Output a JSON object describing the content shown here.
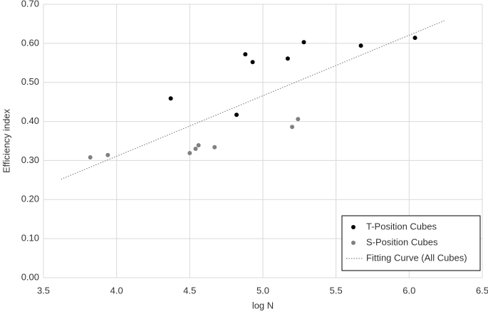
{
  "chart_data": {
    "type": "scatter",
    "xlabel": "log N",
    "ylabel": "Efficiency index",
    "xlim": [
      3.5,
      6.5
    ],
    "xticks": [
      3.5,
      {
        "value": 4,
        "label": "4.0"
      },
      4.5,
      {
        "value": 5,
        "label": "5.0"
      },
      5.5,
      {
        "value": 6,
        "label": "6.0"
      },
      6.5
    ],
    "ylim": [
      0,
      0.7
    ],
    "yticks": [
      {
        "value": 0,
        "label": "0.00"
      },
      {
        "value": 0.1,
        "label": "0.10"
      },
      {
        "value": 0.2,
        "label": "0.20"
      },
      {
        "value": 0.3,
        "label": "0.30"
      },
      {
        "value": 0.4,
        "label": "0.40"
      },
      {
        "value": 0.5,
        "label": "0.50"
      },
      {
        "value": 0.6,
        "label": "0.60"
      },
      {
        "value": 0.7,
        "label": "0.70"
      }
    ],
    "grid": true,
    "legend": "lower right",
    "series": [
      {
        "name": "T-Position Cubes",
        "color": "#000000",
        "mode": "markers",
        "x": [
          4.37,
          4.82,
          4.88,
          4.93,
          5.17,
          5.28,
          5.67,
          6.04
        ],
        "values": [
          0.459,
          0.417,
          0.572,
          0.552,
          0.561,
          0.603,
          0.594,
          0.614
        ]
      },
      {
        "name": "S-Position Cubes",
        "color": "#808080",
        "mode": "markers",
        "x": [
          3.82,
          3.94,
          4.5,
          4.54,
          4.56,
          4.67,
          5.2,
          5.24
        ],
        "values": [
          0.308,
          0.314,
          0.319,
          0.33,
          0.339,
          0.334,
          0.386,
          0.406
        ]
      },
      {
        "name": "Fitting Curve (All Cubes)",
        "color": "#888888",
        "mode": "dotted-line",
        "x": [
          3.62,
          6.24
        ],
        "values": [
          0.252,
          0.658
        ]
      }
    ]
  }
}
